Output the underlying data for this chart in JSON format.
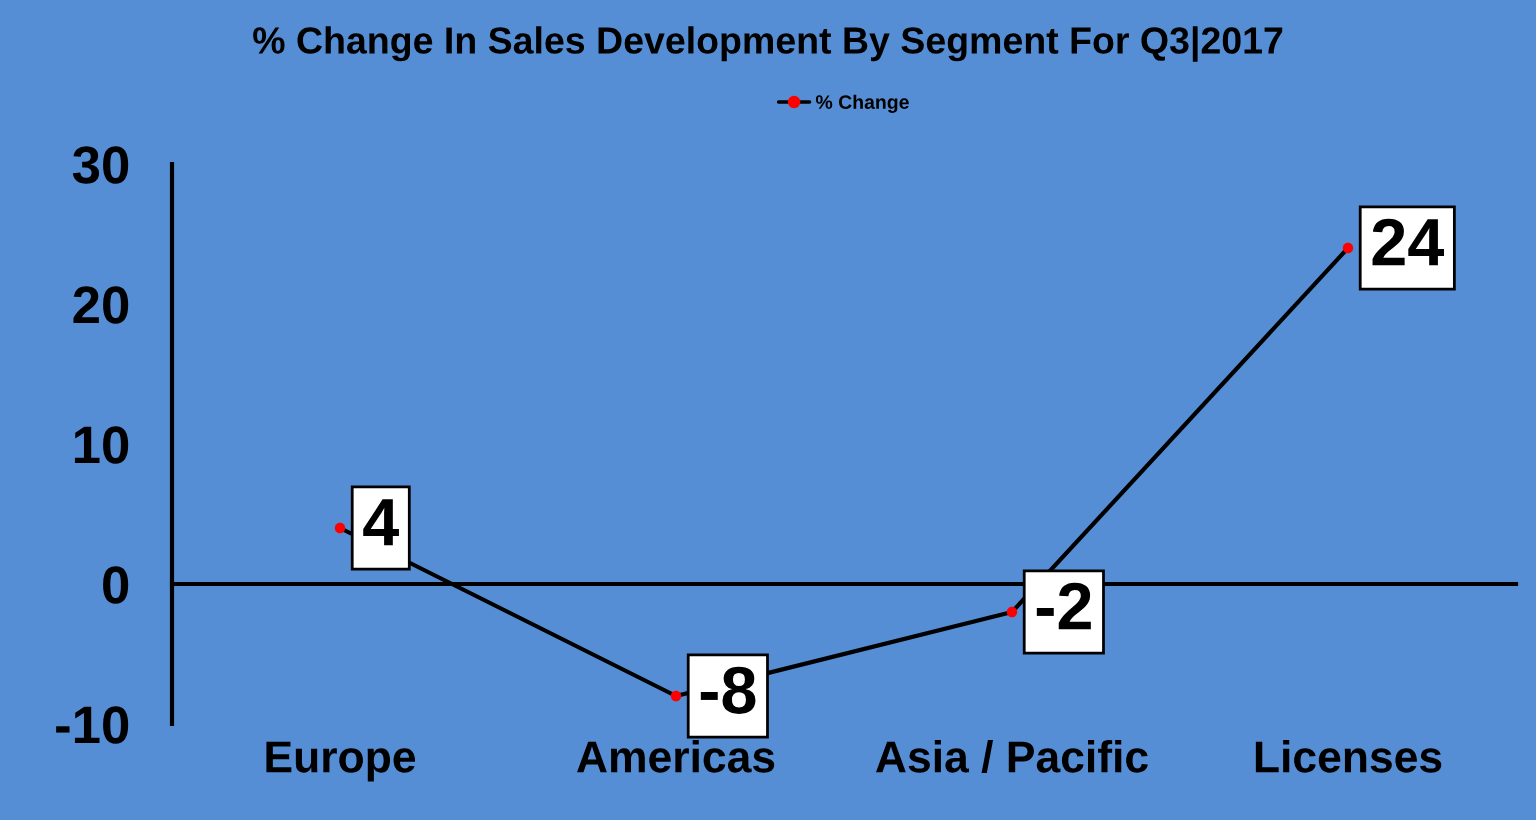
{
  "chart_data": {
    "type": "line",
    "title": "% Change In Sales Development By Segment For Q3|2017",
    "categories": [
      "Europe",
      "Americas",
      "Asia / Pacific",
      "Licenses"
    ],
    "series": [
      {
        "name": "% Change",
        "color": "#000000",
        "colors": [
          "#ff0000",
          "#ff0000",
          "#ff0000",
          "#ff0000"
        ],
        "values": [
          4,
          -8,
          -2,
          24
        ]
      }
    ],
    "ylim": [
      -10,
      30
    ],
    "yticks": [
      -10,
      0,
      10,
      20,
      30
    ],
    "data_labels": true,
    "legend": "top",
    "marker": "circle",
    "line_style": "solid"
  }
}
